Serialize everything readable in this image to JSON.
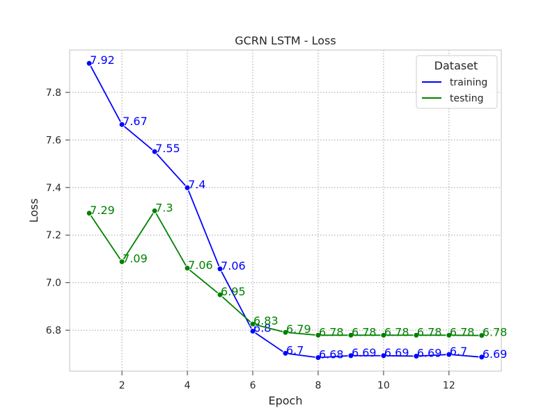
{
  "chart_data": {
    "type": "line",
    "title": "GCRN LSTM - Loss",
    "xlabel": "Epoch",
    "ylabel": "Loss",
    "xlim": [
      0.4,
      13.6
    ],
    "ylim": [
      6.628,
      7.978
    ],
    "xticks": [
      2,
      4,
      6,
      8,
      10,
      12
    ],
    "yticks": [
      6.8,
      7.0,
      7.2,
      7.4,
      7.6,
      7.8
    ],
    "grid": true,
    "legend": {
      "title": "Dataset",
      "position": "top-right"
    },
    "x": [
      1,
      2,
      3,
      4,
      5,
      6,
      7,
      8,
      9,
      10,
      11,
      12,
      13
    ],
    "series": [
      {
        "name": "training",
        "color": "#0000ff",
        "values": [
          7.922,
          7.665,
          7.551,
          7.399,
          7.058,
          6.796,
          6.703,
          6.685,
          6.693,
          6.693,
          6.691,
          6.698,
          6.687
        ],
        "labels": [
          "7.92",
          "7.67",
          "7.55",
          "7.4",
          "7.06",
          "6.8",
          "6.7",
          "6.68",
          "6.69",
          "6.69",
          "6.69",
          "6.7",
          "6.69"
        ]
      },
      {
        "name": "testing",
        "color": "#008000",
        "values": [
          7.292,
          7.088,
          7.302,
          7.061,
          6.949,
          6.826,
          6.791,
          6.779,
          6.779,
          6.779,
          6.779,
          6.779,
          6.778
        ],
        "labels": [
          "7.29",
          "7.09",
          "7.3",
          "7.06",
          "6.95",
          "6.83",
          "6.79",
          "6.78",
          "6.78",
          "6.78",
          "6.78",
          "6.78",
          "6.78"
        ]
      }
    ]
  }
}
